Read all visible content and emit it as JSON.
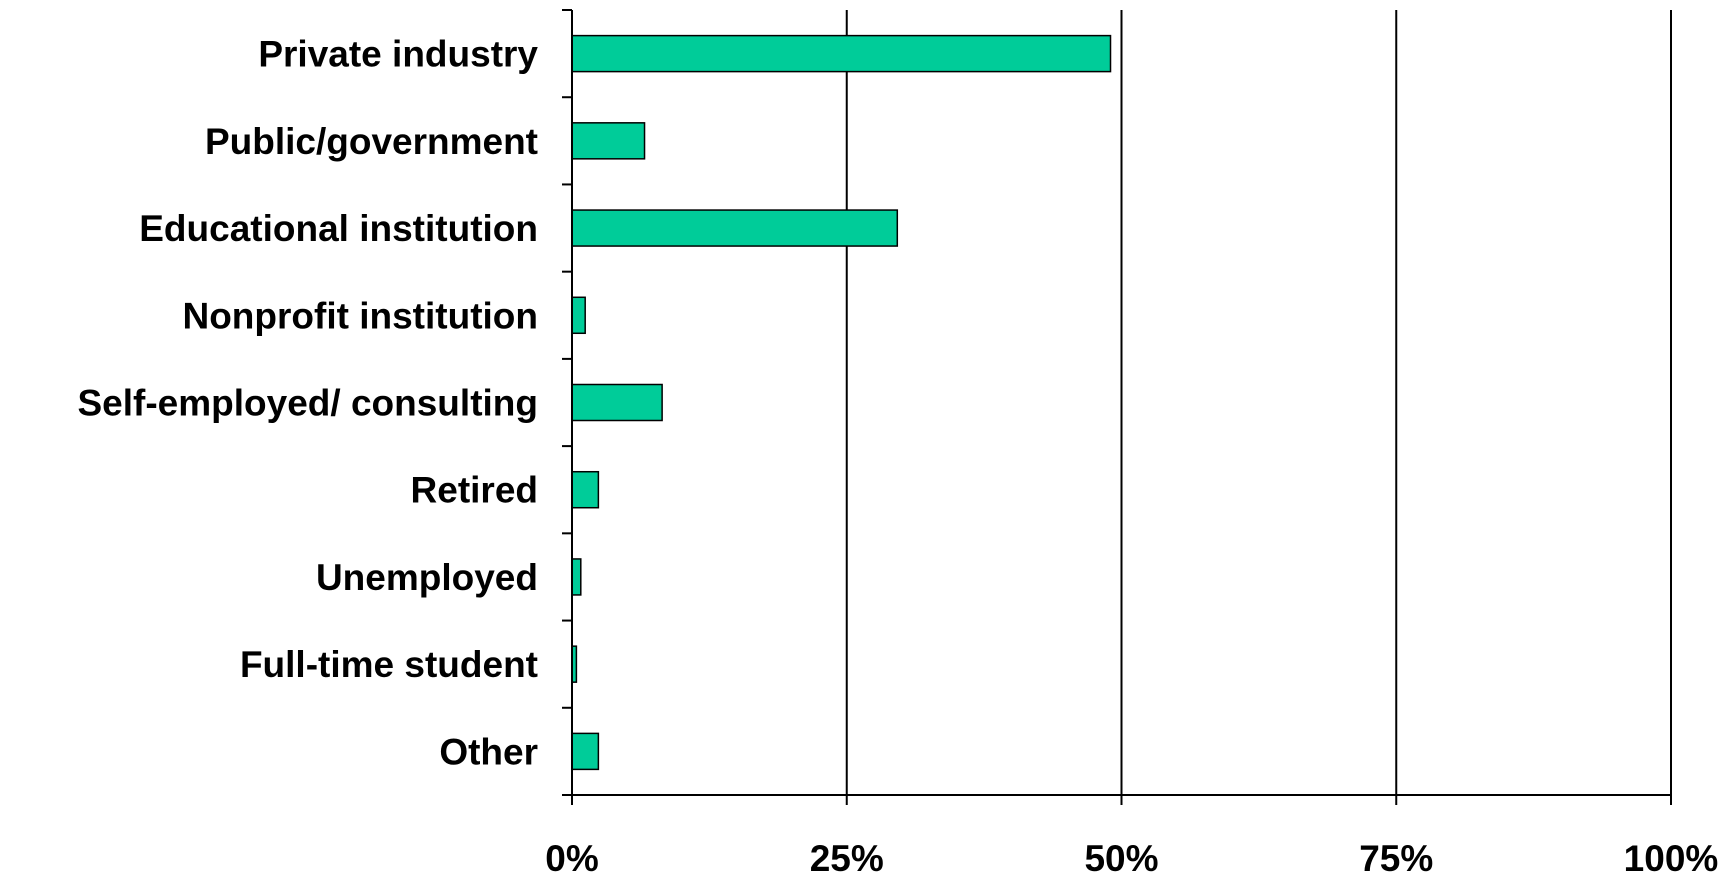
{
  "chart_data": {
    "type": "bar",
    "orientation": "horizontal",
    "categories": [
      "Private industry",
      "Public/government",
      "Educational institution",
      "Nonprofit institution",
      "Self-employed/ consulting",
      "Retired",
      "Unemployed",
      "Full-time student",
      "Other"
    ],
    "values": [
      49.0,
      6.6,
      29.6,
      1.2,
      8.2,
      2.4,
      0.8,
      0.4,
      2.4
    ],
    "xlim": [
      0,
      100
    ],
    "xticks": [
      0,
      25,
      50,
      75,
      100
    ],
    "xtick_labels": [
      "0%",
      "25%",
      "50%",
      "75%",
      "100%"
    ],
    "grid": "vertical",
    "bar_color": "#00CC99"
  }
}
